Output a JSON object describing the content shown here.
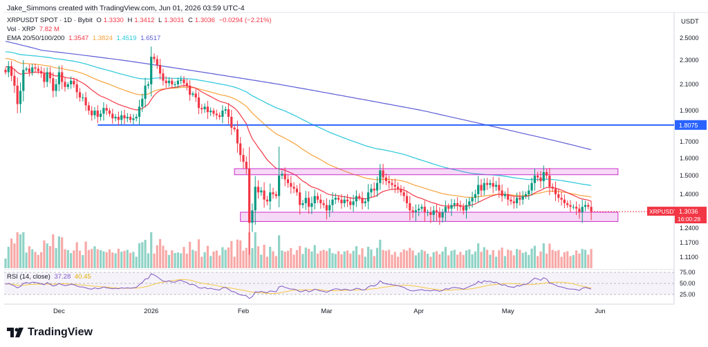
{
  "header": {
    "credit": "Jake_Simmons created with TradingView.com, Jun 01, 2026 03:59 UTC-4"
  },
  "legend": {
    "symbol": "XRPUSDT SPOT · 1D · Bybit",
    "open_label": "O",
    "open": "1.3330",
    "high_label": "H",
    "high": "1.3412",
    "low_label": "L",
    "low": "1.3031",
    "close_label": "C",
    "close": "1.3036",
    "change": "−0.0294 (−2.21%)",
    "vol_label": "Vol · XRP",
    "vol_value": "7.82 M",
    "ema_label": "EMA 20/50/100/200",
    "ema20": "1.3547",
    "ema50": "1.3824",
    "ema100": "1.4519",
    "ema200": "1.6517",
    "rsi_label": "RSI (14, close)",
    "rsi_value": "37.28",
    "rsi_ma": "40.45"
  },
  "colors": {
    "up": "#089981",
    "down": "#f23645",
    "vol_up": "#8fd3c6",
    "vol_down": "#f7a9a7",
    "ema20": "#f23645",
    "ema50": "#f7a23a",
    "ema100": "#26c6da",
    "ema200": "#5b5bd6",
    "support_line": "#2962ff",
    "range_box": "#cc2ccc",
    "rsi": "#7e57c2",
    "rsi_ma": "#f5c842"
  },
  "chart_data": {
    "type": "candlestick",
    "price_axis_title": "USDT",
    "price_ticks": [
      {
        "v": 2.5,
        "label": "2.5000"
      },
      {
        "v": 2.3,
        "label": "2.3000"
      },
      {
        "v": 2.1,
        "label": "2.1000"
      },
      {
        "v": 1.9,
        "label": "1.9000"
      },
      {
        "v": 1.7,
        "label": "1.7000"
      },
      {
        "v": 1.6,
        "label": "1.6000"
      },
      {
        "v": 1.5,
        "label": "1.5000"
      },
      {
        "v": 1.4,
        "label": "1.4000"
      },
      {
        "v": 1.24,
        "label": "1.2400"
      },
      {
        "v": 1.17,
        "label": "1.1700"
      },
      {
        "v": 1.11,
        "label": "1.1100"
      }
    ],
    "rsi_ticks": [
      {
        "v": 75,
        "label": "75.00"
      },
      {
        "v": 50,
        "label": "50.00"
      },
      {
        "v": 25,
        "label": "25.00"
      }
    ],
    "x_labels": [
      {
        "label": "Dec",
        "i": 18
      },
      {
        "label": "2026",
        "i": 49
      },
      {
        "label": "Feb",
        "i": 80
      },
      {
        "label": "Mar",
        "i": 108
      },
      {
        "label": "Apr",
        "i": 139
      },
      {
        "label": "May",
        "i": 169
      },
      {
        "label": "Jun",
        "i": 200
      }
    ],
    "horizontal_line": {
      "price": 1.8075,
      "label": "1.8075",
      "from_i": 31
    },
    "range_boxes": [
      {
        "top": 1.54,
        "bottom": 1.505,
        "from_i": 77,
        "to_i": 206
      },
      {
        "top": 1.3,
        "bottom": 1.265,
        "from_i": 79,
        "to_i": 206
      }
    ],
    "current_price": {
      "label": "XRPUSDT",
      "value": "1.3036",
      "countdown": "16:00:28"
    },
    "ema_last": {
      "ema20": 1.3547,
      "ema50": 1.3824,
      "ema100": 1.4519,
      "ema200": 1.6517
    },
    "closes": [
      2.2,
      2.25,
      2.17,
      2.09,
      1.95,
      2.05,
      2.22,
      2.23,
      2.2,
      2.24,
      2.23,
      2.21,
      2.19,
      2.12,
      2.2,
      2.15,
      2.05,
      2.1,
      2.2,
      2.12,
      2.08,
      2.1,
      2.13,
      2.1,
      2.04,
      2.0,
      2.0,
      1.94,
      1.9,
      1.87,
      1.9,
      1.86,
      1.88,
      1.92,
      1.9,
      1.88,
      1.85,
      1.86,
      1.84,
      1.87,
      1.85,
      1.86,
      1.84,
      1.85,
      1.86,
      1.93,
      1.99,
      2.09,
      2.1,
      2.33,
      2.31,
      2.26,
      2.19,
      2.13,
      2.11,
      2.13,
      2.1,
      2.1,
      2.13,
      2.14,
      2.11,
      2.09,
      2.02,
      2.03,
      2.0,
      1.92,
      1.91,
      1.93,
      1.89,
      1.9,
      1.88,
      1.87,
      1.86,
      1.9,
      1.91,
      1.86,
      1.79,
      1.78,
      1.69,
      1.62,
      1.58,
      1.54,
      1.26,
      1.31,
      1.44,
      1.41,
      1.42,
      1.37,
      1.36,
      1.41,
      1.4,
      1.39,
      1.5,
      1.51,
      1.48,
      1.46,
      1.44,
      1.43,
      1.41,
      1.34,
      1.35,
      1.38,
      1.33,
      1.35,
      1.39,
      1.37,
      1.35,
      1.34,
      1.31,
      1.34,
      1.37,
      1.38,
      1.37,
      1.35,
      1.37,
      1.36,
      1.34,
      1.36,
      1.39,
      1.38,
      1.35,
      1.36,
      1.41,
      1.43,
      1.42,
      1.46,
      1.53,
      1.49,
      1.47,
      1.46,
      1.45,
      1.44,
      1.43,
      1.41,
      1.39,
      1.35,
      1.31,
      1.3,
      1.31,
      1.32,
      1.33,
      1.3,
      1.3,
      1.29,
      1.31,
      1.3,
      1.28,
      1.3,
      1.33,
      1.32,
      1.34,
      1.35,
      1.34,
      1.33,
      1.31,
      1.34,
      1.36,
      1.38,
      1.4,
      1.45,
      1.42,
      1.46,
      1.45,
      1.46,
      1.44,
      1.45,
      1.42,
      1.39,
      1.4,
      1.37,
      1.36,
      1.35,
      1.38,
      1.37,
      1.39,
      1.4,
      1.42,
      1.46,
      1.5,
      1.49,
      1.47,
      1.52,
      1.5,
      1.44,
      1.43,
      1.4,
      1.38,
      1.37,
      1.35,
      1.34,
      1.33,
      1.33,
      1.32,
      1.3,
      1.33,
      1.34,
      1.33,
      1.3036
    ],
    "rsi": [
      48,
      50,
      47,
      44,
      40,
      43,
      50,
      52,
      50,
      53,
      52,
      51,
      49,
      47,
      52,
      48,
      44,
      46,
      50,
      47,
      45,
      46,
      48,
      47,
      44,
      42,
      42,
      40,
      38,
      37,
      40,
      38,
      39,
      42,
      40,
      39,
      38,
      39,
      38,
      40,
      39,
      40,
      39,
      40,
      41,
      47,
      52,
      60,
      61,
      72,
      69,
      65,
      60,
      55,
      54,
      56,
      53,
      53,
      56,
      57,
      54,
      52,
      47,
      48,
      45,
      40,
      39,
      41,
      38,
      39,
      37,
      36,
      35,
      40,
      41,
      37,
      32,
      31,
      27,
      24,
      23,
      22,
      16,
      20,
      31,
      30,
      32,
      30,
      29,
      33,
      32,
      31,
      42,
      44,
      41,
      39,
      37,
      37,
      35,
      31,
      32,
      35,
      31,
      33,
      37,
      35,
      33,
      32,
      30,
      33,
      36,
      38,
      37,
      35,
      37,
      36,
      34,
      36,
      39,
      38,
      35,
      36,
      42,
      45,
      44,
      48,
      56,
      51,
      49,
      48,
      47,
      46,
      45,
      43,
      41,
      37,
      34,
      33,
      34,
      35,
      36,
      34,
      34,
      33,
      35,
      34,
      32,
      34,
      38,
      37,
      40,
      41,
      40,
      39,
      37,
      40,
      43,
      46,
      48,
      55,
      51,
      56,
      54,
      55,
      52,
      53,
      49,
      46,
      47,
      43,
      42,
      41,
      45,
      44,
      47,
      48,
      51,
      57,
      62,
      60,
      57,
      63,
      60,
      51,
      49,
      46,
      43,
      42,
      40,
      38,
      37,
      37,
      36,
      34,
      39,
      41,
      39,
      37.28
    ],
    "rsi_ma_last": 40.45
  },
  "footer": {
    "brand": "TradingView"
  }
}
